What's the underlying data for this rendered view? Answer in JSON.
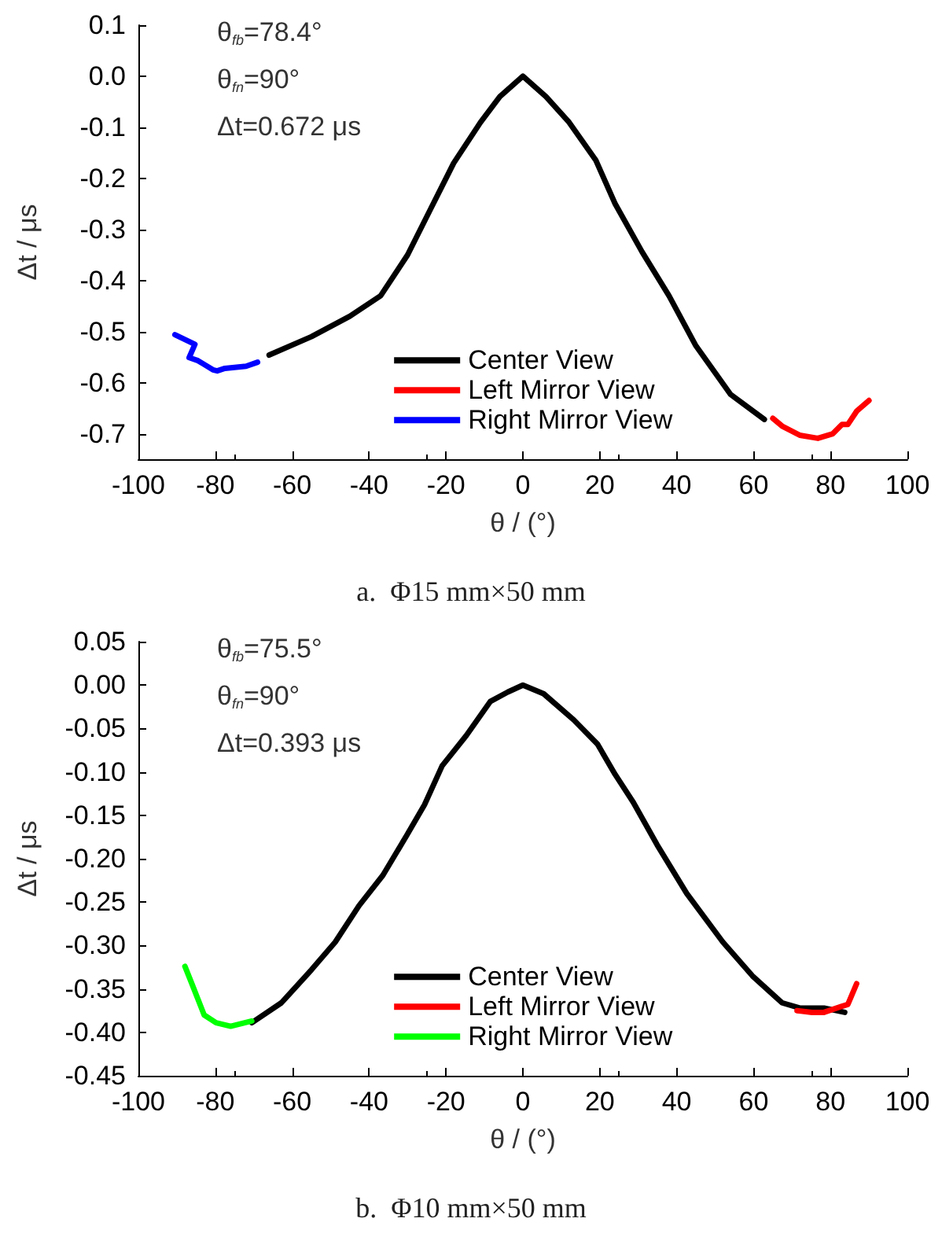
{
  "chart_data": [
    {
      "type": "line",
      "title": "a.  Φ15 mm×50 mm",
      "xlabel": "θ / (°)",
      "ylabel": "Δt / μs",
      "annotations": [
        "θ$_{fb}$=78.4°",
        "θ$_{fn}$=90°",
        "Δt=0.672 μs"
      ],
      "xlim": [
        -100,
        100
      ],
      "xticks": [
        -100,
        -80,
        -60,
        -40,
        -20,
        0,
        20,
        40,
        60,
        80,
        100
      ],
      "ylim": [
        -0.75,
        0.1
      ],
      "yticks": [
        -0.7,
        -0.6,
        -0.5,
        -0.4,
        -0.3,
        -0.2,
        -0.1,
        {
          "value": 0,
          "label": "0.0"
        },
        0.1
      ],
      "grid": false,
      "legend": "bottom",
      "marker": "none",
      "line_style": "solid",
      "series": [
        {
          "name": "Center View",
          "color": "#000000",
          "x": [
            -66,
            -55,
            -45,
            -37,
            -30,
            -24,
            -18,
            -11,
            -6,
            0,
            6,
            12,
            19,
            24,
            31,
            38,
            45,
            54,
            62.8
          ],
          "values": [
            -0.546,
            -0.51,
            -0.47,
            -0.43,
            -0.35,
            -0.26,
            -0.17,
            -0.09,
            -0.04,
            0,
            -0.04,
            -0.09,
            -0.165,
            -0.25,
            -0.344,
            -0.43,
            -0.528,
            -0.623,
            -0.672
          ]
        },
        {
          "name": "Left Mirror View",
          "color": "#ff0000",
          "x": [
            65,
            67.4,
            72,
            76.7,
            80.6,
            83,
            84.5,
            86.8,
            90
          ],
          "values": [
            -0.67,
            -0.685,
            -0.703,
            -0.709,
            -0.7,
            -0.682,
            -0.682,
            -0.656,
            -0.635
          ]
        },
        {
          "name": "Right Mirror View",
          "color": "#0000ff",
          "x": [
            -90.5,
            -85.3,
            -86.8,
            -84.5,
            -80.6,
            -79.5,
            -77.5,
            -72,
            -69
          ],
          "values": [
            -0.506,
            -0.525,
            -0.551,
            -0.557,
            -0.575,
            -0.577,
            -0.572,
            -0.568,
            -0.56
          ]
        }
      ]
    },
    {
      "type": "line",
      "title": "b.  Φ10 mm×50 mm",
      "xlabel": "θ / (°)",
      "ylabel": "Δt / μs",
      "annotations": [
        "θ$_{fb}$=75.5°",
        "θ$_{fn}$=90°",
        "Δt=0.393 μs"
      ],
      "xlim": [
        -100,
        100
      ],
      "xticks": [
        -100,
        -80,
        -60,
        -40,
        -20,
        0,
        20,
        40,
        60,
        80,
        100
      ],
      "ylim": [
        -0.45,
        0.05
      ],
      "yticks": [
        {
          "value": -0.45,
          "label": "-0.45"
        },
        {
          "value": -0.4,
          "label": "-0.40"
        },
        -0.35,
        {
          "value": -0.3,
          "label": "-0.30"
        },
        -0.25,
        {
          "value": -0.2,
          "label": "-0.20"
        },
        -0.15,
        {
          "value": -0.1,
          "label": "-0.10"
        },
        -0.05,
        {
          "value": 0,
          "label": "0.00"
        },
        0.05
      ],
      "grid": false,
      "legend": "bottom",
      "marker": "none",
      "line_style": "solid",
      "series": [
        {
          "name": "Center View",
          "color": "#000000",
          "x": [
            -70.5,
            -62.8,
            -55,
            -48.8,
            -42.6,
            -36.4,
            -30.2,
            -25.6,
            -21,
            -14.7,
            -8.5,
            -3.9,
            0,
            5.4,
            13.2,
            19.4,
            24,
            28.7,
            34.9,
            42.6,
            52,
            59.7,
            67.4,
            72,
            78.3,
            83.7
          ],
          "values": [
            -0.389,
            -0.366,
            -0.328,
            -0.296,
            -0.254,
            -0.219,
            -0.173,
            -0.138,
            -0.093,
            -0.058,
            -0.019,
            -0.008,
            0,
            -0.01,
            -0.04,
            -0.068,
            -0.103,
            -0.135,
            -0.184,
            -0.24,
            -0.296,
            -0.335,
            -0.366,
            -0.372,
            -0.372,
            -0.377
          ]
        },
        {
          "name": "Left Mirror View",
          "color": "#ff0000",
          "x": [
            71.3,
            75.2,
            78.3,
            83,
            84.5,
            86.8
          ],
          "values": [
            -0.375,
            -0.377,
            -0.377,
            -0.37,
            -0.368,
            -0.344
          ]
        },
        {
          "name": "Right Mirror View",
          "color": "#00ff00",
          "x": [
            -87.9,
            -86,
            -82.9,
            -79.8,
            -76,
            -70.5
          ],
          "values": [
            -0.324,
            -0.345,
            -0.38,
            -0.389,
            -0.393,
            -0.387
          ]
        }
      ]
    }
  ]
}
